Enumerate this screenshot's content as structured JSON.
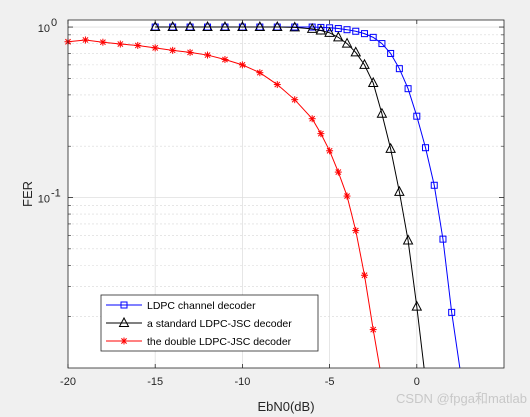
{
  "chart_data": {
    "type": "line",
    "title": "",
    "xlabel": "EbN0(dB)",
    "ylabel": "FER",
    "xlim": [
      -20,
      5
    ],
    "ylim": [
      0.01,
      1.1
    ],
    "yscale": "log",
    "grid": true,
    "minor_grid": true,
    "legend_position": "bottom-left",
    "x_ticks": [
      "-20",
      "-15",
      "-10",
      "-5",
      "0"
    ],
    "x_tick_values": [
      -20,
      -15,
      -10,
      -5,
      0
    ],
    "y_ticks": [
      {
        "value": 1,
        "base": "10",
        "exp": "0"
      },
      {
        "value": 0.1,
        "base": "10",
        "exp": "-1"
      }
    ],
    "series": [
      {
        "name": "LDPC channel decoder",
        "color": "#0000ff",
        "marker": "square",
        "points": [
          [
            -15,
            1.0
          ],
          [
            -14,
            1.0
          ],
          [
            -13,
            1.0
          ],
          [
            -12,
            1.0
          ],
          [
            -11,
            1.0
          ],
          [
            -10,
            1.0
          ],
          [
            -9,
            1.0
          ],
          [
            -8,
            1.0
          ],
          [
            -7,
            1.0
          ],
          [
            -6,
            1.0
          ],
          [
            -5.5,
            0.995
          ],
          [
            -5,
            0.99
          ],
          [
            -4.5,
            0.98
          ],
          [
            -4,
            0.965
          ],
          [
            -3.5,
            0.945
          ],
          [
            -3,
            0.915
          ],
          [
            -2.5,
            0.87
          ],
          [
            -2,
            0.8
          ],
          [
            -1.5,
            0.7
          ],
          [
            -1,
            0.57
          ],
          [
            -0.5,
            0.435
          ],
          [
            0,
            0.3
          ],
          [
            0.5,
            0.196
          ],
          [
            1,
            0.118
          ],
          [
            1.5,
            0.057
          ],
          [
            2,
            0.0212
          ],
          [
            2.5,
            0.0095
          ]
        ]
      },
      {
        "name": "a standard LDPC-JSC decoder",
        "color": "#000000",
        "marker": "triangle",
        "points": [
          [
            -15,
            1.0
          ],
          [
            -14,
            1.0
          ],
          [
            -13,
            1.0
          ],
          [
            -12,
            1.0
          ],
          [
            -11,
            1.0
          ],
          [
            -10,
            1.0
          ],
          [
            -9,
            1.0
          ],
          [
            -8,
            1.0
          ],
          [
            -7,
            0.995
          ],
          [
            -6,
            0.975
          ],
          [
            -5.5,
            0.955
          ],
          [
            -5,
            0.925
          ],
          [
            -4.5,
            0.87
          ],
          [
            -4,
            0.8
          ],
          [
            -3.5,
            0.71
          ],
          [
            -3,
            0.6
          ],
          [
            -2.5,
            0.47
          ],
          [
            -2,
            0.31
          ],
          [
            -1.5,
            0.193
          ],
          [
            -1,
            0.108
          ],
          [
            -0.5,
            0.056
          ],
          [
            0,
            0.0229
          ],
          [
            0.5,
            0.0085
          ]
        ]
      },
      {
        "name": "the double LDPC-JSC decoder",
        "color": "#ff0000",
        "marker": "star",
        "points": [
          [
            -20,
            0.82
          ],
          [
            -19,
            0.84
          ],
          [
            -18,
            0.815
          ],
          [
            -17,
            0.795
          ],
          [
            -16,
            0.78
          ],
          [
            -15,
            0.755
          ],
          [
            -14,
            0.73
          ],
          [
            -13,
            0.71
          ],
          [
            -12,
            0.685
          ],
          [
            -11,
            0.645
          ],
          [
            -10,
            0.6
          ],
          [
            -9,
            0.54
          ],
          [
            -8,
            0.46
          ],
          [
            -7,
            0.375
          ],
          [
            -6,
            0.29
          ],
          [
            -5.5,
            0.237
          ],
          [
            -5,
            0.188
          ],
          [
            -4.5,
            0.141
          ],
          [
            -4,
            0.102
          ],
          [
            -3.5,
            0.064
          ],
          [
            -3,
            0.035
          ],
          [
            -2.5,
            0.0168
          ],
          [
            -2,
            0.0085
          ]
        ]
      }
    ]
  },
  "watermark": "CSDN @fpga和matlab"
}
